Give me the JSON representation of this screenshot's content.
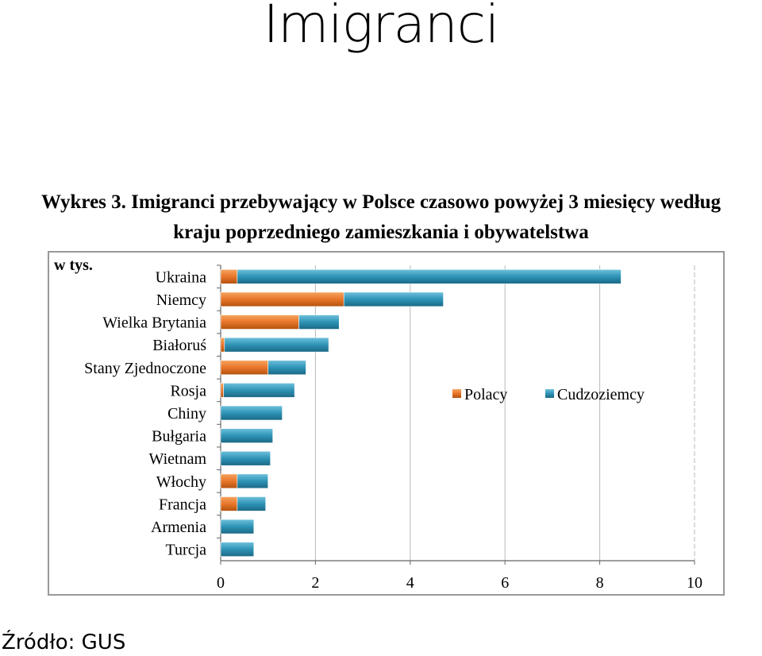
{
  "slide": {
    "title": "Imigranci",
    "source": "Źródło: GUS"
  },
  "chart_data": {
    "type": "bar",
    "orientation": "horizontal",
    "stacked": true,
    "title_line1": "Wykres 3. Imigranci przebywający w Polsce czasowo powyżej 3 miesięcy według",
    "title_line2": "kraju poprzedniego zamieszkania i obywatelstwa",
    "unit_label": "w tys.",
    "categories": [
      "Ukraina",
      "Niemcy",
      "Wielka Brytania",
      "Białoruś",
      "Stany Zjednoczone",
      "Rosja",
      "Chiny",
      "Bułgaria",
      "Wietnam",
      "Włochy",
      "Francja",
      "Armenia",
      "Turcja"
    ],
    "series": [
      {
        "name": "Polacy",
        "color": "#e8762a",
        "values": [
          0.35,
          2.6,
          1.65,
          0.08,
          1.0,
          0.06,
          0.0,
          0.0,
          0.0,
          0.35,
          0.35,
          0.0,
          0.0
        ]
      },
      {
        "name": "Cudzoziemcy",
        "color": "#2e93b6",
        "values": [
          8.1,
          2.1,
          0.85,
          2.2,
          0.8,
          1.5,
          1.3,
          1.1,
          1.05,
          0.65,
          0.6,
          0.7,
          0.7
        ]
      }
    ],
    "xlim": [
      0,
      10
    ],
    "xticks": [
      0,
      2,
      4,
      6,
      8,
      10
    ],
    "legend_position": "right-middle",
    "grid": "vertical"
  }
}
